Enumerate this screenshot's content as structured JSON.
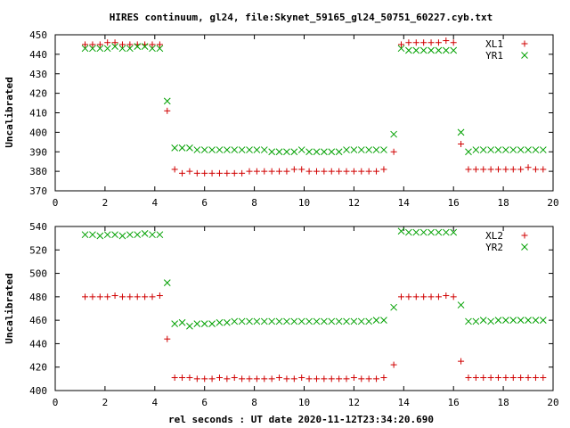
{
  "title": "HIRES continuum, gl24, file:Skynet_59165_gl24_50751_60227.cyb.txt",
  "xlabel": "rel seconds : UT date 2020-11-12T23:34:20.690",
  "colors": {
    "red": "#d00000",
    "green": "#00a000",
    "frame": "#000000"
  },
  "chart_data": [
    {
      "type": "scatter",
      "ylabel": "Uncalibrated",
      "xlim": [
        0,
        20
      ],
      "ylim": [
        370,
        450
      ],
      "xticks": [
        0,
        2,
        4,
        6,
        8,
        10,
        12,
        14,
        16,
        18,
        20
      ],
      "yticks": [
        370,
        380,
        390,
        400,
        410,
        420,
        430,
        440,
        450
      ],
      "legend_position": "top-right",
      "series": [
        {
          "name": "XL1",
          "marker": "plus",
          "color": "#d00000",
          "x": [
            1.2,
            1.5,
            1.8,
            2.1,
            2.4,
            2.7,
            3.0,
            3.3,
            3.6,
            3.9,
            4.2,
            4.5,
            4.8,
            5.1,
            5.4,
            5.7,
            6.0,
            6.3,
            6.6,
            6.9,
            7.2,
            7.5,
            7.8,
            8.1,
            8.4,
            8.7,
            9.0,
            9.3,
            9.6,
            9.9,
            10.2,
            10.5,
            10.8,
            11.1,
            11.4,
            11.7,
            12.0,
            12.3,
            12.6,
            12.9,
            13.2,
            13.6,
            13.9,
            14.2,
            14.5,
            14.8,
            15.1,
            15.4,
            15.7,
            16.0,
            16.3,
            16.6,
            16.9,
            17.2,
            17.5,
            17.8,
            18.1,
            18.4,
            18.7,
            19.0,
            19.3,
            19.6
          ],
          "y": [
            445,
            445,
            445,
            446,
            446,
            445,
            445,
            445,
            445,
            445,
            445,
            411,
            381,
            379,
            380,
            379,
            379,
            379,
            379,
            379,
            379,
            379,
            380,
            380,
            380,
            380,
            380,
            380,
            381,
            381,
            380,
            380,
            380,
            380,
            380,
            380,
            380,
            380,
            380,
            380,
            381,
            390,
            445,
            446,
            446,
            446,
            446,
            446,
            447,
            446,
            394,
            381,
            381,
            381,
            381,
            381,
            381,
            381,
            381,
            382,
            381,
            381
          ]
        },
        {
          "name": "YR1",
          "marker": "cross",
          "color": "#00a000",
          "x": [
            1.2,
            1.5,
            1.8,
            2.1,
            2.4,
            2.7,
            3.0,
            3.3,
            3.6,
            3.9,
            4.2,
            4.5,
            4.8,
            5.1,
            5.4,
            5.7,
            6.0,
            6.3,
            6.6,
            6.9,
            7.2,
            7.5,
            7.8,
            8.1,
            8.4,
            8.7,
            9.0,
            9.3,
            9.6,
            9.9,
            10.2,
            10.5,
            10.8,
            11.1,
            11.4,
            11.7,
            12.0,
            12.3,
            12.6,
            12.9,
            13.2,
            13.6,
            13.9,
            14.2,
            14.5,
            14.8,
            15.1,
            15.4,
            15.7,
            16.0,
            16.3,
            16.6,
            16.9,
            17.2,
            17.5,
            17.8,
            18.1,
            18.4,
            18.7,
            19.0,
            19.3,
            19.6
          ],
          "y": [
            443,
            443,
            443,
            443,
            444,
            443,
            443,
            444,
            444,
            443,
            443,
            416,
            392,
            392,
            392,
            391,
            391,
            391,
            391,
            391,
            391,
            391,
            391,
            391,
            391,
            390,
            390,
            390,
            390,
            391,
            390,
            390,
            390,
            390,
            390,
            391,
            391,
            391,
            391,
            391,
            391,
            399,
            443,
            442,
            442,
            442,
            442,
            442,
            442,
            442,
            400,
            390,
            391,
            391,
            391,
            391,
            391,
            391,
            391,
            391,
            391,
            391
          ]
        }
      ]
    },
    {
      "type": "scatter",
      "ylabel": "Uncalibrated",
      "xlim": [
        0,
        20
      ],
      "ylim": [
        400,
        540
      ],
      "xticks": [
        0,
        2,
        4,
        6,
        8,
        10,
        12,
        14,
        16,
        18,
        20
      ],
      "yticks": [
        400,
        420,
        440,
        460,
        480,
        500,
        520,
        540
      ],
      "legend_position": "top-right",
      "series": [
        {
          "name": "XL2",
          "marker": "plus",
          "color": "#d00000",
          "x": [
            1.2,
            1.5,
            1.8,
            2.1,
            2.4,
            2.7,
            3.0,
            3.3,
            3.6,
            3.9,
            4.2,
            4.5,
            4.8,
            5.1,
            5.4,
            5.7,
            6.0,
            6.3,
            6.6,
            6.9,
            7.2,
            7.5,
            7.8,
            8.1,
            8.4,
            8.7,
            9.0,
            9.3,
            9.6,
            9.9,
            10.2,
            10.5,
            10.8,
            11.1,
            11.4,
            11.7,
            12.0,
            12.3,
            12.6,
            12.9,
            13.2,
            13.6,
            13.9,
            14.2,
            14.5,
            14.8,
            15.1,
            15.4,
            15.7,
            16.0,
            16.3,
            16.6,
            16.9,
            17.2,
            17.5,
            17.8,
            18.1,
            18.4,
            18.7,
            19.0,
            19.3,
            19.6
          ],
          "y": [
            480,
            480,
            480,
            480,
            481,
            480,
            480,
            480,
            480,
            480,
            481,
            444,
            411,
            411,
            411,
            410,
            410,
            410,
            411,
            410,
            411,
            410,
            410,
            410,
            410,
            410,
            411,
            410,
            410,
            411,
            410,
            410,
            410,
            410,
            410,
            410,
            411,
            410,
            410,
            410,
            411,
            422,
            480,
            480,
            480,
            480,
            480,
            480,
            481,
            480,
            425,
            411,
            411,
            411,
            411,
            411,
            411,
            411,
            411,
            411,
            411,
            411
          ]
        },
        {
          "name": "YR2",
          "marker": "cross",
          "color": "#00a000",
          "x": [
            1.2,
            1.5,
            1.8,
            2.1,
            2.4,
            2.7,
            3.0,
            3.3,
            3.6,
            3.9,
            4.2,
            4.5,
            4.8,
            5.1,
            5.4,
            5.7,
            6.0,
            6.3,
            6.6,
            6.9,
            7.2,
            7.5,
            7.8,
            8.1,
            8.4,
            8.7,
            9.0,
            9.3,
            9.6,
            9.9,
            10.2,
            10.5,
            10.8,
            11.1,
            11.4,
            11.7,
            12.0,
            12.3,
            12.6,
            12.9,
            13.2,
            13.6,
            13.9,
            14.2,
            14.5,
            14.8,
            15.1,
            15.4,
            15.7,
            16.0,
            16.3,
            16.6,
            16.9,
            17.2,
            17.5,
            17.8,
            18.1,
            18.4,
            18.7,
            19.0,
            19.3,
            19.6
          ],
          "y": [
            533,
            533,
            532,
            533,
            533,
            532,
            533,
            533,
            534,
            533,
            533,
            492,
            457,
            458,
            455,
            457,
            457,
            457,
            458,
            458,
            459,
            459,
            459,
            459,
            459,
            459,
            459,
            459,
            459,
            459,
            459,
            459,
            459,
            459,
            459,
            459,
            459,
            459,
            459,
            460,
            460,
            471,
            536,
            535,
            535,
            535,
            535,
            535,
            535,
            535,
            473,
            459,
            459,
            460,
            459,
            460,
            460,
            460,
            460,
            460,
            460,
            460
          ]
        }
      ]
    }
  ]
}
